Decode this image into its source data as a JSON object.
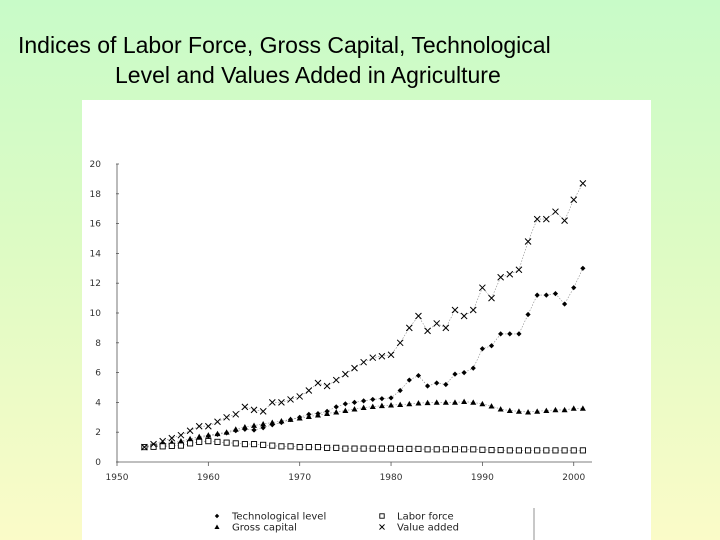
{
  "slide": {
    "title_line1": "Indices of Labor Force, Gross Capital, Technological",
    "title_line2": "Level and Values Added in Agriculture"
  },
  "chart_data": {
    "type": "line",
    "title": "Indices of Labor Force, Gross Capital, Technological Level and Values Added in Agriculture",
    "xlabel": "",
    "ylabel": "",
    "xlim": [
      1950,
      2002
    ],
    "ylim": [
      0,
      20
    ],
    "x_ticks": [
      1950,
      1960,
      1970,
      1980,
      1990,
      2000
    ],
    "y_ticks": [
      0,
      2,
      4,
      6,
      8,
      10,
      12,
      14,
      16,
      18,
      20
    ],
    "grid": false,
    "legend_position": "bottom",
    "x": [
      1953,
      1954,
      1955,
      1956,
      1957,
      1958,
      1959,
      1960,
      1961,
      1962,
      1963,
      1964,
      1965,
      1966,
      1967,
      1968,
      1969,
      1970,
      1971,
      1972,
      1973,
      1974,
      1975,
      1976,
      1977,
      1978,
      1979,
      1980,
      1981,
      1982,
      1983,
      1984,
      1985,
      1986,
      1987,
      1988,
      1989,
      1990,
      1991,
      1992,
      1993,
      1994,
      1995,
      1996,
      1997,
      1998,
      1999,
      2000,
      2001
    ],
    "series": [
      {
        "name": "Technological level",
        "marker": "diamond",
        "color": "#000000",
        "values": [
          1.0,
          1.05,
          1.1,
          1.2,
          1.3,
          1.45,
          1.6,
          1.75,
          1.85,
          1.95,
          2.1,
          2.2,
          2.15,
          2.3,
          2.5,
          2.65,
          2.85,
          3.0,
          3.2,
          3.25,
          3.4,
          3.7,
          3.9,
          4.0,
          4.1,
          4.2,
          4.25,
          4.3,
          4.8,
          5.5,
          5.8,
          5.1,
          5.3,
          5.2,
          5.9,
          6.0,
          6.3,
          7.6,
          7.8,
          8.6,
          8.6,
          8.6,
          9.9,
          11.2,
          11.2,
          11.3,
          10.6,
          11.7,
          13.0
        ]
      },
      {
        "name": "Gross capital",
        "marker": "triangle",
        "color": "#000000",
        "values": [
          1.0,
          1.1,
          1.2,
          1.3,
          1.4,
          1.55,
          1.7,
          1.8,
          1.9,
          2.0,
          2.2,
          2.35,
          2.45,
          2.55,
          2.65,
          2.75,
          2.85,
          2.95,
          3.05,
          3.15,
          3.25,
          3.35,
          3.45,
          3.55,
          3.65,
          3.72,
          3.78,
          3.82,
          3.85,
          3.9,
          3.95,
          3.98,
          4.0,
          4.0,
          4.0,
          4.05,
          4.0,
          3.9,
          3.75,
          3.55,
          3.45,
          3.4,
          3.35,
          3.4,
          3.45,
          3.5,
          3.5,
          3.6,
          3.6
        ]
      },
      {
        "name": "Labor force",
        "marker": "square",
        "color": "#000000",
        "values": [
          1.0,
          1.02,
          1.05,
          1.08,
          1.1,
          1.25,
          1.35,
          1.4,
          1.35,
          1.3,
          1.25,
          1.2,
          1.2,
          1.15,
          1.1,
          1.05,
          1.05,
          1.0,
          1.0,
          1.0,
          0.95,
          0.95,
          0.9,
          0.9,
          0.9,
          0.9,
          0.9,
          0.9,
          0.88,
          0.88,
          0.88,
          0.85,
          0.85,
          0.85,
          0.85,
          0.85,
          0.85,
          0.82,
          0.8,
          0.8,
          0.78,
          0.78,
          0.78,
          0.78,
          0.78,
          0.78,
          0.78,
          0.78,
          0.78
        ]
      },
      {
        "name": "Value added",
        "marker": "x",
        "color": "#000000",
        "values": [
          1.0,
          1.2,
          1.4,
          1.6,
          1.8,
          2.1,
          2.4,
          2.4,
          2.7,
          3.0,
          3.2,
          3.7,
          3.5,
          3.4,
          4.0,
          4.0,
          4.2,
          4.4,
          4.8,
          5.3,
          5.1,
          5.5,
          5.9,
          6.3,
          6.7,
          7.0,
          7.1,
          7.2,
          8.0,
          9.0,
          9.8,
          8.8,
          9.3,
          9.0,
          10.2,
          9.8,
          10.2,
          11.7,
          11.0,
          12.4,
          12.6,
          12.9,
          14.8,
          16.3,
          16.3,
          16.8,
          16.2,
          17.6,
          18.7
        ]
      }
    ]
  }
}
